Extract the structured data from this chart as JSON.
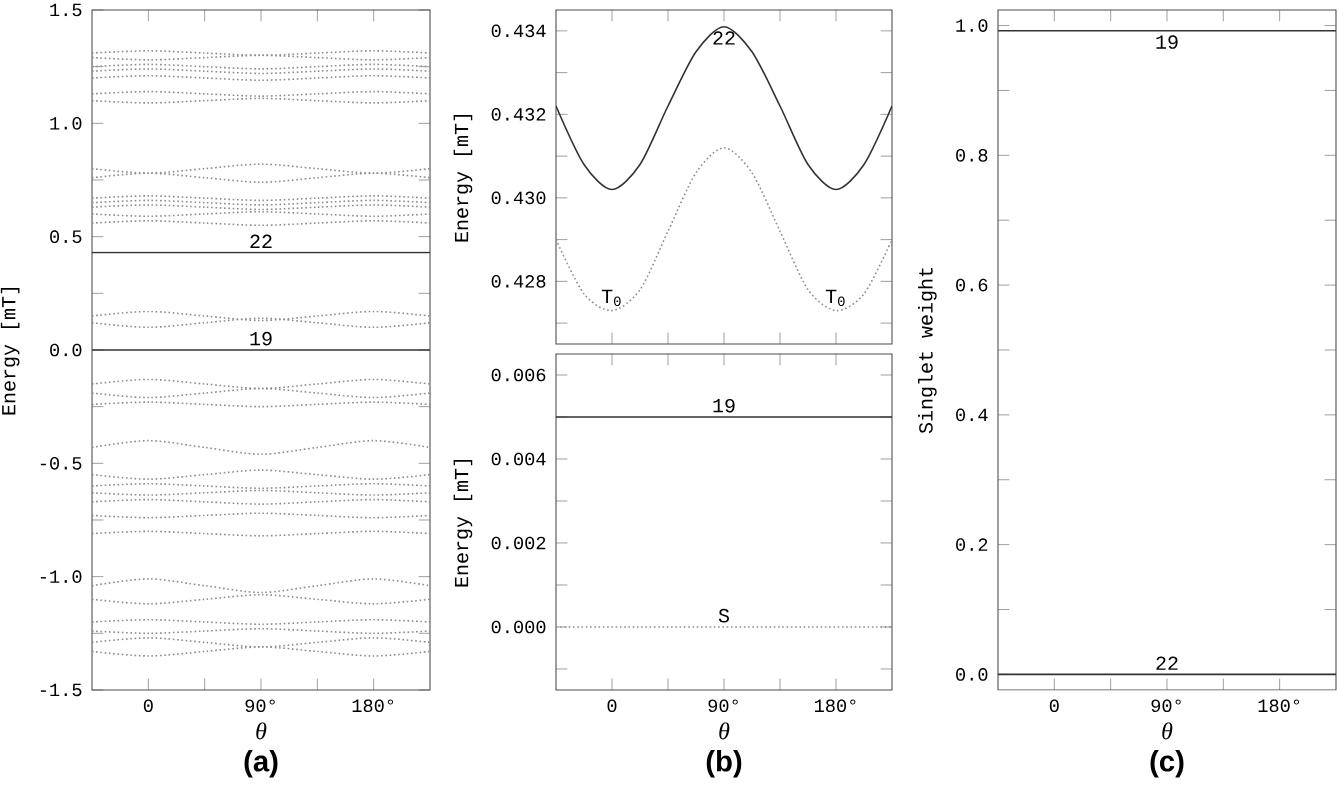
{
  "chart_data": [
    {
      "type": "line",
      "title": "(a)",
      "xlabel": "θ",
      "ylabel": "Energy [mT]",
      "x": [
        -45,
        0,
        45,
        90,
        135,
        180,
        225
      ],
      "xlim": [
        -45,
        225
      ],
      "ylim": [
        -1.5,
        1.5
      ],
      "xticks": [
        {
          "value": 0,
          "label": "0"
        },
        {
          "value": 45,
          "label": null
        },
        {
          "value": 90,
          "label": "90°"
        },
        {
          "value": 135,
          "label": null
        },
        {
          "value": 180,
          "label": "180°"
        }
      ],
      "yticks": [
        {
          "value": -1.5,
          "label": "-1.5"
        },
        {
          "value": -1.25,
          "label": null
        },
        {
          "value": -1.0,
          "label": "-1.0"
        },
        {
          "value": -0.75,
          "label": null
        },
        {
          "value": -0.5,
          "label": "-0.5"
        },
        {
          "value": -0.25,
          "label": null
        },
        {
          "value": 0.0,
          "label": "0.0"
        },
        {
          "value": 0.25,
          "label": null
        },
        {
          "value": 0.5,
          "label": "0.5"
        },
        {
          "value": 0.75,
          "label": null
        },
        {
          "value": 1.0,
          "label": "1.0"
        },
        {
          "value": 1.25,
          "label": null
        },
        {
          "value": 1.5,
          "label": "1.5"
        }
      ],
      "annotations": [
        {
          "text": "22",
          "x": 90,
          "y": 0.43
        },
        {
          "text": "19",
          "x": 90,
          "y": 0.0
        }
      ],
      "series": [
        {
          "color": "#333333",
          "line_style": "solid",
          "values": [
            0.43,
            0.43,
            0.43,
            0.43,
            0.43,
            0.43,
            0.43
          ]
        },
        {
          "color": "#333333",
          "line_style": "solid",
          "values": [
            0.0,
            0.0,
            0.0,
            0.0,
            0.0,
            0.0,
            0.0
          ]
        },
        {
          "color": "#8c8c8c",
          "line_style": "dotted",
          "values": [
            1.31,
            1.32,
            1.31,
            1.3,
            1.31,
            1.32,
            1.31
          ]
        },
        {
          "color": "#8c8c8c",
          "line_style": "dotted",
          "values": [
            1.29,
            1.28,
            1.29,
            1.3,
            1.29,
            1.28,
            1.29
          ]
        },
        {
          "color": "#8c8c8c",
          "line_style": "dotted",
          "values": [
            1.25,
            1.26,
            1.25,
            1.24,
            1.25,
            1.26,
            1.25
          ]
        },
        {
          "color": "#8c8c8c",
          "line_style": "dotted",
          "values": [
            1.23,
            1.24,
            1.23,
            1.22,
            1.23,
            1.24,
            1.23
          ]
        },
        {
          "color": "#8c8c8c",
          "line_style": "dotted",
          "values": [
            1.2,
            1.21,
            1.2,
            1.19,
            1.2,
            1.21,
            1.2
          ]
        },
        {
          "color": "#8c8c8c",
          "line_style": "dotted",
          "values": [
            1.13,
            1.14,
            1.13,
            1.12,
            1.13,
            1.14,
            1.13
          ]
        },
        {
          "color": "#8c8c8c",
          "line_style": "dotted",
          "values": [
            1.1,
            1.09,
            1.1,
            1.11,
            1.1,
            1.09,
            1.1
          ]
        },
        {
          "color": "#8c8c8c",
          "line_style": "dotted",
          "values": [
            0.8,
            0.78,
            0.8,
            0.82,
            0.8,
            0.78,
            0.8
          ]
        },
        {
          "color": "#8c8c8c",
          "line_style": "dotted",
          "values": [
            0.76,
            0.78,
            0.76,
            0.74,
            0.76,
            0.78,
            0.76
          ]
        },
        {
          "color": "#8c8c8c",
          "line_style": "dotted",
          "values": [
            0.67,
            0.68,
            0.67,
            0.66,
            0.67,
            0.68,
            0.67
          ]
        },
        {
          "color": "#8c8c8c",
          "line_style": "dotted",
          "values": [
            0.65,
            0.66,
            0.65,
            0.64,
            0.65,
            0.66,
            0.65
          ]
        },
        {
          "color": "#8c8c8c",
          "line_style": "dotted",
          "values": [
            0.63,
            0.64,
            0.63,
            0.62,
            0.63,
            0.64,
            0.63
          ]
        },
        {
          "color": "#8c8c8c",
          "line_style": "dotted",
          "values": [
            0.6,
            0.59,
            0.6,
            0.61,
            0.6,
            0.59,
            0.6
          ]
        },
        {
          "color": "#8c8c8c",
          "line_style": "dotted",
          "values": [
            0.56,
            0.57,
            0.56,
            0.55,
            0.56,
            0.57,
            0.56
          ]
        },
        {
          "color": "#8c8c8c",
          "line_style": "dotted",
          "values": [
            0.15,
            0.17,
            0.15,
            0.13,
            0.15,
            0.17,
            0.15
          ]
        },
        {
          "color": "#8c8c8c",
          "line_style": "dotted",
          "values": [
            0.12,
            0.1,
            0.12,
            0.14,
            0.12,
            0.1,
            0.12
          ]
        },
        {
          "color": "#8c8c8c",
          "line_style": "dotted",
          "values": [
            -0.15,
            -0.13,
            -0.15,
            -0.17,
            -0.15,
            -0.13,
            -0.15
          ]
        },
        {
          "color": "#8c8c8c",
          "line_style": "dotted",
          "values": [
            -0.19,
            -0.21,
            -0.19,
            -0.17,
            -0.19,
            -0.21,
            -0.19
          ]
        },
        {
          "color": "#8c8c8c",
          "line_style": "dotted",
          "values": [
            -0.24,
            -0.23,
            -0.24,
            -0.25,
            -0.24,
            -0.23,
            -0.24
          ]
        },
        {
          "color": "#8c8c8c",
          "line_style": "dotted",
          "values": [
            -0.43,
            -0.4,
            -0.43,
            -0.46,
            -0.43,
            -0.4,
            -0.43
          ]
        },
        {
          "color": "#8c8c8c",
          "line_style": "dotted",
          "values": [
            -0.55,
            -0.57,
            -0.55,
            -0.53,
            -0.55,
            -0.57,
            -0.55
          ]
        },
        {
          "color": "#8c8c8c",
          "line_style": "dotted",
          "values": [
            -0.6,
            -0.59,
            -0.6,
            -0.61,
            -0.6,
            -0.59,
            -0.6
          ]
        },
        {
          "color": "#8c8c8c",
          "line_style": "dotted",
          "values": [
            -0.63,
            -0.64,
            -0.63,
            -0.62,
            -0.63,
            -0.64,
            -0.63
          ]
        },
        {
          "color": "#8c8c8c",
          "line_style": "dotted",
          "values": [
            -0.67,
            -0.66,
            -0.67,
            -0.68,
            -0.67,
            -0.66,
            -0.67
          ]
        },
        {
          "color": "#8c8c8c",
          "line_style": "dotted",
          "values": [
            -0.73,
            -0.74,
            -0.73,
            -0.72,
            -0.73,
            -0.74,
            -0.73
          ]
        },
        {
          "color": "#8c8c8c",
          "line_style": "dotted",
          "values": [
            -0.81,
            -0.8,
            -0.81,
            -0.82,
            -0.81,
            -0.8,
            -0.81
          ]
        },
        {
          "color": "#8c8c8c",
          "line_style": "dotted",
          "values": [
            -1.04,
            -1.01,
            -1.04,
            -1.07,
            -1.04,
            -1.01,
            -1.04
          ]
        },
        {
          "color": "#8c8c8c",
          "line_style": "dotted",
          "values": [
            -1.1,
            -1.12,
            -1.1,
            -1.08,
            -1.1,
            -1.12,
            -1.1
          ]
        },
        {
          "color": "#8c8c8c",
          "line_style": "dotted",
          "values": [
            -1.2,
            -1.19,
            -1.2,
            -1.21,
            -1.2,
            -1.19,
            -1.2
          ]
        },
        {
          "color": "#8c8c8c",
          "line_style": "dotted",
          "values": [
            -1.24,
            -1.25,
            -1.24,
            -1.23,
            -1.24,
            -1.25,
            -1.24
          ]
        },
        {
          "color": "#8c8c8c",
          "line_style": "dotted",
          "values": [
            -1.29,
            -1.27,
            -1.29,
            -1.31,
            -1.29,
            -1.27,
            -1.29
          ]
        },
        {
          "color": "#8c8c8c",
          "line_style": "dotted",
          "values": [
            -1.33,
            -1.35,
            -1.33,
            -1.31,
            -1.33,
            -1.35,
            -1.33
          ]
        }
      ]
    },
    {
      "type": "line",
      "ylabel": "Energy [mT]",
      "tick_labels": "y",
      "x": [
        -45,
        -22.5,
        0,
        22.5,
        45,
        67.5,
        90,
        112.5,
        135,
        157.5,
        180,
        202.5,
        225
      ],
      "xlim": [
        -45,
        225
      ],
      "ylim": [
        0.4265,
        0.4345
      ],
      "xticks": [
        {
          "value": 0,
          "label": null
        },
        {
          "value": 45,
          "label": null
        },
        {
          "value": 90,
          "label": null
        },
        {
          "value": 135,
          "label": null
        },
        {
          "value": 180,
          "label": null
        }
      ],
      "yticks": [
        {
          "value": 0.427,
          "label": null
        },
        {
          "value": 0.428,
          "label": "0.428"
        },
        {
          "value": 0.429,
          "label": null
        },
        {
          "value": 0.43,
          "label": "0.430"
        },
        {
          "value": 0.431,
          "label": null
        },
        {
          "value": 0.432,
          "label": "0.432"
        },
        {
          "value": 0.433,
          "label": null
        },
        {
          "value": 0.434,
          "label": "0.434"
        }
      ],
      "annotations": [
        {
          "text": "22",
          "x": 90,
          "y": 0.4341
        },
        {
          "text": "T$_{0}$",
          "x": 0,
          "y": 0.4273
        },
        {
          "text": "T$_{0}$",
          "x": 180,
          "y": 0.4273
        }
      ],
      "series": [
        {
          "color": "#333333",
          "line_style": "solid",
          "values": [
            0.4322,
            0.4308,
            0.4302,
            0.4308,
            0.4322,
            0.4335,
            0.4341,
            0.4335,
            0.4322,
            0.4308,
            0.4302,
            0.4308,
            0.4322
          ]
        },
        {
          "color": "#8c8c8c",
          "line_style": "dotted",
          "values": [
            0.429,
            0.4277,
            0.4273,
            0.4278,
            0.4292,
            0.4306,
            0.4312,
            0.4306,
            0.4292,
            0.4278,
            0.4273,
            0.4277,
            0.429
          ]
        }
      ]
    },
    {
      "type": "line",
      "title": "(b)",
      "xlabel": "θ",
      "ylabel": "Energy [mT]",
      "x": [
        -45,
        225
      ],
      "xlim": [
        -45,
        225
      ],
      "ylim": [
        -0.0015,
        0.0065
      ],
      "xticks": [
        {
          "value": 0,
          "label": "0"
        },
        {
          "value": 45,
          "label": null
        },
        {
          "value": 90,
          "label": "90°"
        },
        {
          "value": 135,
          "label": null
        },
        {
          "value": 180,
          "label": "180°"
        }
      ],
      "yticks": [
        {
          "value": -0.001,
          "label": null
        },
        {
          "value": 0.0,
          "label": "0.000"
        },
        {
          "value": 0.001,
          "label": null
        },
        {
          "value": 0.002,
          "label": "0.002"
        },
        {
          "value": 0.003,
          "label": null
        },
        {
          "value": 0.004,
          "label": "0.004"
        },
        {
          "value": 0.005,
          "label": null
        },
        {
          "value": 0.006,
          "label": "0.006"
        }
      ],
      "annotations": [
        {
          "text": "19",
          "x": 90,
          "y": 0.005
        },
        {
          "text": "S",
          "x": 90,
          "y": 0.0
        }
      ],
      "series": [
        {
          "color": "#333333",
          "line_style": "solid",
          "values": [
            0.005,
            0.005
          ]
        },
        {
          "color": "#8c8c8c",
          "line_style": "dotted",
          "values": [
            0.0,
            0.0
          ]
        }
      ]
    },
    {
      "type": "line",
      "title": "(c)",
      "xlabel": "θ",
      "ylabel": "Singlet weight",
      "x": [
        -45,
        225
      ],
      "xlim": [
        -45,
        225
      ],
      "ylim": [
        -0.024,
        1.024
      ],
      "xticks": [
        {
          "value": 0,
          "label": "0"
        },
        {
          "value": 45,
          "label": null
        },
        {
          "value": 90,
          "label": "90°"
        },
        {
          "value": 135,
          "label": null
        },
        {
          "value": 180,
          "label": "180°"
        }
      ],
      "yticks": [
        {
          "value": 0.0,
          "label": "0.0"
        },
        {
          "value": 0.1,
          "label": null
        },
        {
          "value": 0.2,
          "label": "0.2"
        },
        {
          "value": 0.3,
          "label": null
        },
        {
          "value": 0.4,
          "label": "0.4"
        },
        {
          "value": 0.5,
          "label": null
        },
        {
          "value": 0.6,
          "label": "0.6"
        },
        {
          "value": 0.7,
          "label": null
        },
        {
          "value": 0.8,
          "label": "0.8"
        },
        {
          "value": 0.9,
          "label": null
        },
        {
          "value": 1.0,
          "label": "1.0"
        }
      ],
      "annotations": [
        {
          "text": "19",
          "x": 90,
          "y": 0.992
        },
        {
          "text": "22",
          "x": 90,
          "y": 0.0
        }
      ],
      "series": [
        {
          "color": "#333333",
          "line_style": "solid",
          "values": [
            0.992,
            0.992
          ]
        },
        {
          "color": "#333333",
          "line_style": "solid",
          "values": [
            0.0,
            0.0
          ]
        }
      ]
    }
  ]
}
